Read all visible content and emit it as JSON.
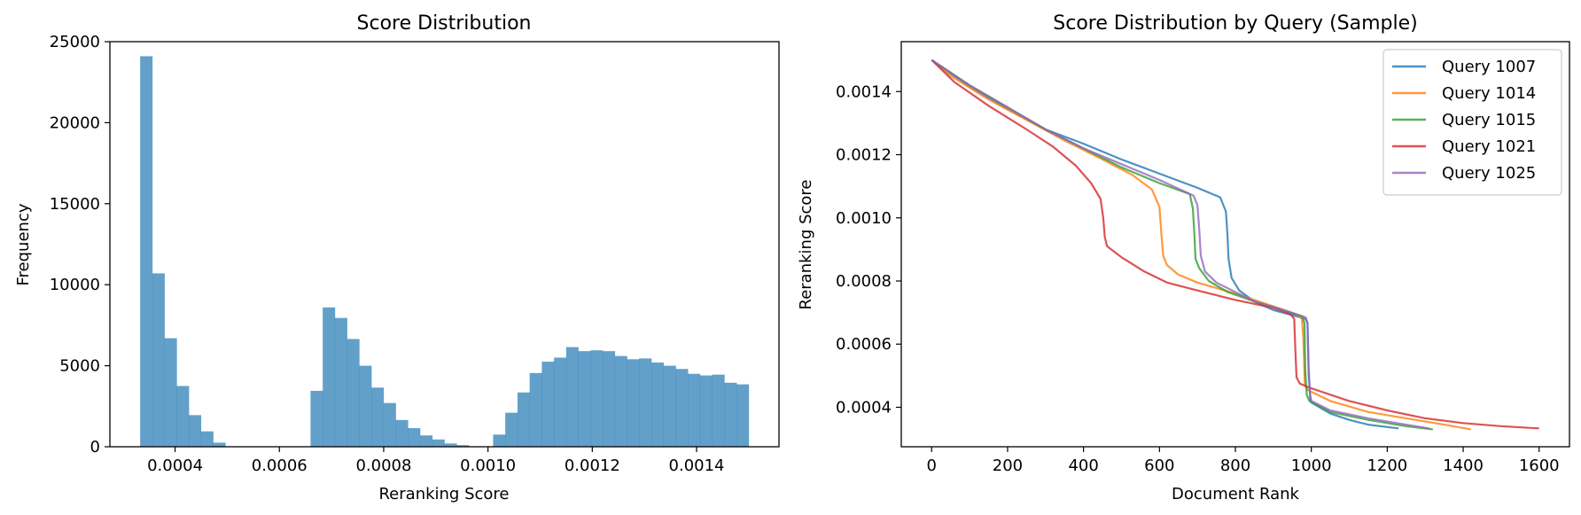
{
  "chart_data": [
    {
      "type": "bar",
      "title": "Score Distribution",
      "xlabel": "Reranking Score",
      "ylabel": "Frequency",
      "xlim": [
        0.000275,
        0.001558
      ],
      "ylim": [
        0,
        25000
      ],
      "xticks": [
        "0.0004",
        "0.0006",
        "0.0008",
        "0.0010",
        "0.0012",
        "0.0014"
      ],
      "xtick_values": [
        0.0004,
        0.0006,
        0.0008,
        0.001,
        0.0012,
        0.0014
      ],
      "yticks": [
        "0",
        "5000",
        "10000",
        "15000",
        "20000",
        "25000"
      ],
      "ytick_values": [
        0,
        5000,
        10000,
        15000,
        20000,
        25000
      ],
      "bin_start": 0.000333,
      "bin_width": 2.334e-05,
      "values": [
        24100,
        10700,
        6700,
        3750,
        1950,
        950,
        250,
        0,
        0,
        0,
        0,
        0,
        0,
        0,
        3450,
        8600,
        7950,
        6650,
        5000,
        3650,
        2700,
        1650,
        1150,
        700,
        450,
        200,
        100,
        0,
        0,
        750,
        2100,
        3350,
        4550,
        5250,
        5500,
        6150,
        5900,
        5950,
        5900,
        5600,
        5400,
        5450,
        5200,
        5000,
        4800,
        4500,
        4400,
        4450,
        3950,
        3850
      ],
      "color": "#1f77b4",
      "alpha": 0.7
    },
    {
      "type": "line",
      "title": "Score Distribution by Query (Sample)",
      "xlabel": "Document Rank",
      "ylabel": "Reranking Score",
      "xlim": [
        -80,
        1680
      ],
      "ylim": [
        0.000275,
        0.001558
      ],
      "xticks": [
        "0",
        "200",
        "400",
        "600",
        "800",
        "1000",
        "1200",
        "1400",
        "1600"
      ],
      "xtick_values": [
        0,
        200,
        400,
        600,
        800,
        1000,
        1200,
        1400,
        1600
      ],
      "yticks": [
        "0.0004",
        "0.0006",
        "0.0008",
        "0.0010",
        "0.0012",
        "0.0014"
      ],
      "ytick_values": [
        0.0004,
        0.0006,
        0.0008,
        0.001,
        0.0012,
        0.0014
      ],
      "legend_position": "top-right",
      "series": [
        {
          "name": "Query 1007",
          "color": "#1f77b4",
          "points": [
            [
              0,
              0.0015
            ],
            [
              100,
              0.001415
            ],
            [
              200,
              0.001345
            ],
            [
              300,
              0.00128
            ],
            [
              400,
              0.001235
            ],
            [
              500,
              0.001185
            ],
            [
              600,
              0.00114
            ],
            [
              700,
              0.001095
            ],
            [
              760,
              0.001065
            ],
            [
              775,
              0.00102
            ],
            [
              779,
              0.00095
            ],
            [
              782,
              0.00087
            ],
            [
              790,
              0.00081
            ],
            [
              810,
              0.00077
            ],
            [
              850,
              0.000735
            ],
            [
              900,
              0.000708
            ],
            [
              950,
              0.000692
            ],
            [
              985,
              0.00068
            ],
            [
              990,
              0.000665
            ],
            [
              993,
              0.00052
            ],
            [
              997,
              0.00043
            ],
            [
              1000,
              0.000415
            ],
            [
              1050,
              0.00038
            ],
            [
              1100,
              0.00036
            ],
            [
              1150,
              0.000345
            ],
            [
              1230,
              0.000333
            ]
          ]
        },
        {
          "name": "Query 1014",
          "color": "#ff7f0e",
          "points": [
            [
              0,
              0.0015
            ],
            [
              50,
              0.00145
            ],
            [
              150,
              0.001375
            ],
            [
              250,
              0.00131
            ],
            [
              350,
              0.001245
            ],
            [
              450,
              0.001185
            ],
            [
              530,
              0.001135
            ],
            [
              580,
              0.00109
            ],
            [
              600,
              0.001035
            ],
            [
              605,
              0.00095
            ],
            [
              610,
              0.00088
            ],
            [
              620,
              0.00085
            ],
            [
              650,
              0.00082
            ],
            [
              700,
              0.000795
            ],
            [
              800,
              0.00076
            ],
            [
              900,
              0.00072
            ],
            [
              960,
              0.000695
            ],
            [
              975,
              0.00068
            ],
            [
              979,
              0.00062
            ],
            [
              983,
              0.00047
            ],
            [
              990,
              0.000455
            ],
            [
              1050,
              0.00042
            ],
            [
              1150,
              0.000385
            ],
            [
              1250,
              0.000365
            ],
            [
              1350,
              0.000345
            ],
            [
              1420,
              0.00033
            ]
          ]
        },
        {
          "name": "Query 1015",
          "color": "#2ca02c",
          "points": [
            [
              0,
              0.0015
            ],
            [
              100,
              0.00142
            ],
            [
              200,
              0.00135
            ],
            [
              300,
              0.00128
            ],
            [
              400,
              0.00122
            ],
            [
              500,
              0.00116
            ],
            [
              600,
              0.00111
            ],
            [
              680,
              0.001075
            ],
            [
              688,
              0.00103
            ],
            [
              692,
              0.00095
            ],
            [
              695,
              0.00087
            ],
            [
              705,
              0.00084
            ],
            [
              730,
              0.0008
            ],
            [
              780,
              0.000765
            ],
            [
              850,
              0.000735
            ],
            [
              920,
              0.00071
            ],
            [
              960,
              0.000695
            ],
            [
              977,
              0.000688
            ],
            [
              982,
              0.000665
            ],
            [
              984,
              0.00052
            ],
            [
              988,
              0.00044
            ],
            [
              995,
              0.00042
            ],
            [
              1050,
              0.000385
            ],
            [
              1150,
              0.00036
            ],
            [
              1250,
              0.00034
            ],
            [
              1320,
              0.00033
            ]
          ]
        },
        {
          "name": "Query 1021",
          "color": "#d62728",
          "points": [
            [
              0,
              0.0015
            ],
            [
              60,
              0.00143
            ],
            [
              150,
              0.001355
            ],
            [
              250,
              0.00128
            ],
            [
              320,
              0.001225
            ],
            [
              380,
              0.001165
            ],
            [
              420,
              0.00111
            ],
            [
              445,
              0.00106
            ],
            [
              452,
              0.001
            ],
            [
              456,
              0.00094
            ],
            [
              462,
              0.00091
            ],
            [
              500,
              0.000875
            ],
            [
              560,
              0.00083
            ],
            [
              620,
              0.000795
            ],
            [
              700,
              0.00077
            ],
            [
              800,
              0.00074
            ],
            [
              900,
              0.000715
            ],
            [
              945,
              0.000695
            ],
            [
              955,
              0.00068
            ],
            [
              958,
              0.00058
            ],
            [
              961,
              0.000495
            ],
            [
              970,
              0.000475
            ],
            [
              1000,
              0.00046
            ],
            [
              1100,
              0.00042
            ],
            [
              1200,
              0.00039
            ],
            [
              1300,
              0.000365
            ],
            [
              1400,
              0.00035
            ],
            [
              1500,
              0.00034
            ],
            [
              1600,
              0.000333
            ]
          ]
        },
        {
          "name": "Query 1025",
          "color": "#9467bd",
          "points": [
            [
              0,
              0.0015
            ],
            [
              100,
              0.00142
            ],
            [
              200,
              0.00135
            ],
            [
              300,
              0.00128
            ],
            [
              400,
              0.00122
            ],
            [
              500,
              0.00117
            ],
            [
              600,
              0.00112
            ],
            [
              690,
              0.00107
            ],
            [
              700,
              0.00104
            ],
            [
              705,
              0.00096
            ],
            [
              709,
              0.00088
            ],
            [
              720,
              0.00083
            ],
            [
              750,
              0.000795
            ],
            [
              800,
              0.000765
            ],
            [
              850,
              0.000735
            ],
            [
              920,
              0.00071
            ],
            [
              960,
              0.000695
            ],
            [
              985,
              0.000685
            ],
            [
              990,
              0.000668
            ],
            [
              993,
              0.0005
            ],
            [
              997,
              0.00044
            ],
            [
              1000,
              0.00042
            ],
            [
              1050,
              0.00039
            ],
            [
              1150,
              0.000365
            ],
            [
              1250,
              0.000345
            ],
            [
              1310,
              0.000333
            ]
          ]
        }
      ]
    }
  ]
}
